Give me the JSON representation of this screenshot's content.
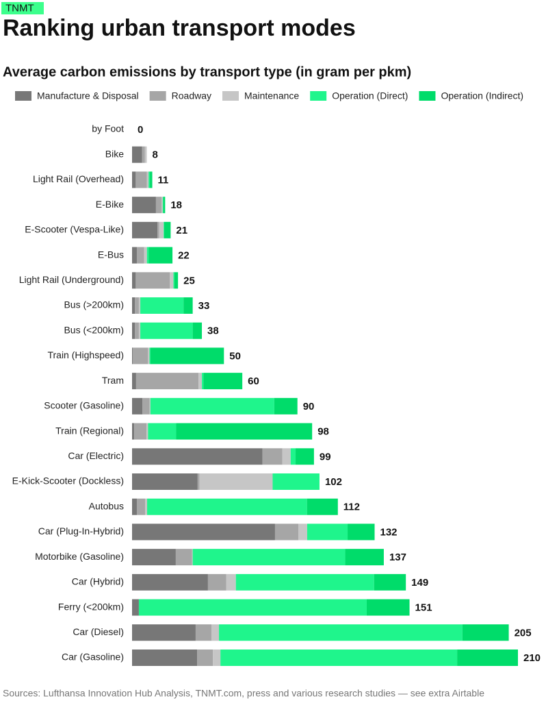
{
  "brand": "TNMT",
  "chart_data": {
    "type": "stacked-bar-horizontal",
    "title": "Ranking urban transport modes",
    "subtitle": "Average carbon emissions by transport type (in gram per pkm)",
    "source": "Sources: Lufthansa Innovation Hub Analysis, TNMT.com, press and various research studies — see extra Airtable",
    "categories": [
      "by Foot",
      "Bike",
      "Light Rail (Overhead)",
      "E-Bike",
      "E-Scooter (Vespa-Like)",
      "E-Bus",
      "Light Rail (Underground)",
      "Bus (>200km)",
      "Bus (<200km)",
      "Train (Highspeed)",
      "Tram",
      "Scooter (Gasoline)",
      "Train (Regional)",
      "Car (Electric)",
      "E-Kick-Scooter (Dockless)",
      "Autobus",
      "Car (Plug-In-Hybrid)",
      "Motorbike (Gasoline)",
      "Car (Hybrid)",
      "Ferry (<200km)",
      "Car (Diesel)",
      "Car (Gasoline)"
    ],
    "totals": [
      0,
      8,
      11,
      18,
      21,
      22,
      25,
      33,
      38,
      50,
      60,
      90,
      98,
      99,
      102,
      112,
      132,
      137,
      149,
      151,
      205,
      210
    ],
    "series": [
      {
        "name": "Manufacture & Disposal",
        "color": "#777777",
        "values": [
          0,
          5.5,
          2,
          13,
          13.8,
          2.6,
          2,
          1.5,
          1.5,
          0.5,
          2.2,
          5.6,
          1.2,
          71,
          35.7,
          2.6,
          77.8,
          23.8,
          41.3,
          3.7,
          34.6,
          35.4
        ]
      },
      {
        "name": "Roadway",
        "color": "#a6a6a6",
        "values": [
          0,
          1.5,
          6,
          3,
          1,
          4,
          18.6,
          2.2,
          2.2,
          8.2,
          34,
          4,
          6.7,
          10.8,
          1,
          4.5,
          12.7,
          8.9,
          10,
          0,
          8.6,
          8.6
        ]
      },
      {
        "name": "Maintenance",
        "color": "#c6c6c6",
        "values": [
          0,
          1,
          1,
          0.7,
          2.4,
          1.5,
          1.9,
          0.8,
          0.8,
          0.8,
          1.8,
          0.4,
          0.8,
          4.5,
          39.8,
          1.1,
          4.8,
          0.3,
          5.2,
          0,
          4.1,
          4.1
        ]
      },
      {
        "name": "Operation (Direct)",
        "color": "#1ff58c",
        "values": [
          0,
          0,
          0.7,
          0.3,
          0.3,
          1,
          0.5,
          23.5,
          28.5,
          0.5,
          0.8,
          67.4,
          15.3,
          2.7,
          25.5,
          87,
          22,
          83,
          75.2,
          124,
          132.5,
          128.8
        ]
      },
      {
        "name": "Operation (Indirect)",
        "color": "#00dc6a",
        "values": [
          0,
          0,
          1.3,
          1,
          3.5,
          12.9,
          2,
          5,
          5,
          40,
          21.2,
          12.6,
          74,
          10,
          0,
          16.8,
          14.7,
          21,
          17.3,
          23.3,
          25.2,
          33.1
        ]
      }
    ]
  }
}
